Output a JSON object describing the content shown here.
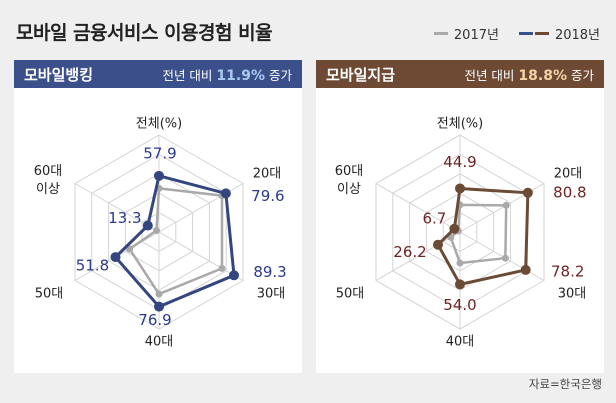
{
  "title": "모바일 금융서비스 이용경험 비율",
  "legend": [
    {
      "label": "2017년",
      "color": "#aaaaaa"
    },
    {
      "label": "2018년",
      "colors": [
        "#3b4f8a",
        "#6e4a35"
      ]
    }
  ],
  "source": "자료=한국은행",
  "chart_data": [
    {
      "type": "radar",
      "title": "모바일뱅킹",
      "subtitle_pre": "전년 대비",
      "subtitle_value": "11.9%",
      "subtitle_post": "증가",
      "header_color": "#3b4f8a",
      "accent_text_color": "#a9c8f2",
      "line_color": "#34467f",
      "label_color": "#2b3a8c",
      "axes": [
        "전체(%)",
        "20대",
        "30대",
        "40대",
        "50대",
        "60대|이상"
      ],
      "range": [
        0,
        100
      ],
      "series": [
        {
          "name": "2017년",
          "values": [
            45,
            75,
            75,
            64,
            35,
            3
          ]
        },
        {
          "name": "2018년",
          "values": [
            57.9,
            79.6,
            89.3,
            76.9,
            51.8,
            13.3
          ],
          "labels": [
            "57.9",
            "79.6",
            "89.3",
            "76.9",
            "51.8",
            "13.3"
          ]
        }
      ]
    },
    {
      "type": "radar",
      "title": "모바일지급",
      "subtitle_pre": "전년 대비",
      "subtitle_value": "18.8%",
      "subtitle_post": "증가",
      "header_color": "#6e4a35",
      "accent_text_color": "#f4d3a6",
      "line_color": "#6b4a36",
      "label_color": "#6b2424",
      "axes": [
        "전체(%)",
        "20대",
        "30대",
        "40대",
        "50대",
        "60대|이상"
      ],
      "range": [
        0,
        100
      ],
      "series": [
        {
          "name": "2017년",
          "values": [
            28,
            55,
            54,
            32,
            11,
            2
          ]
        },
        {
          "name": "2018년",
          "values": [
            44.9,
            80.8,
            78.2,
            54.0,
            26.2,
            6.7
          ],
          "labels": [
            "44.9",
            "80.8",
            "78.2",
            "54.0",
            "26.2",
            "6.7"
          ]
        }
      ]
    }
  ]
}
